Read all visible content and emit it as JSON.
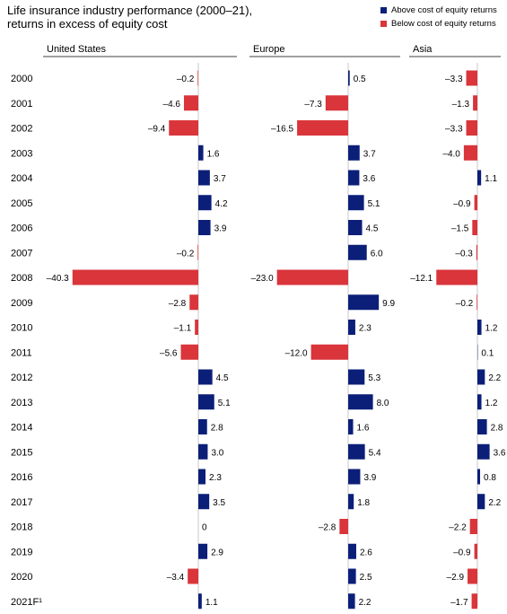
{
  "title_lines": [
    "Life insurance industry performance (2000–21),",
    "returns in excess of equity cost"
  ],
  "legend": [
    {
      "label": "Above cost of equity returns",
      "color": "#0b1f78"
    },
    {
      "label": "Below cost of equity returns",
      "color": "#d9353b"
    }
  ],
  "chart_data": {
    "type": "bar",
    "orientation": "horizontal",
    "categories": [
      "2000",
      "2001",
      "2002",
      "2003",
      "2004",
      "2005",
      "2006",
      "2007",
      "2008",
      "2009",
      "2010",
      "2011",
      "2012",
      "2013",
      "2014",
      "2015",
      "2016",
      "2017",
      "2018",
      "2019",
      "2020",
      "2021F¹"
    ],
    "colors": {
      "positive": "#0b1f78",
      "negative": "#d9353b"
    },
    "series": [
      {
        "name": "United States",
        "values": [
          -0.2,
          -4.6,
          -9.4,
          1.6,
          3.7,
          4.2,
          3.9,
          -0.2,
          -40.3,
          -2.8,
          -1.1,
          -5.6,
          4.5,
          5.1,
          2.8,
          3.0,
          2.3,
          3.5,
          0,
          2.9,
          -3.4,
          1.1
        ],
        "labels": [
          "–0.2",
          "–4.6",
          "–9.4",
          "1.6",
          "3.7",
          "4.2",
          "3.9",
          "–0.2",
          "–40.3",
          "–2.8",
          "–1.1",
          "–5.6",
          "4.5",
          "5.1",
          "2.8",
          "3.0",
          "2.3",
          "3.5",
          "0",
          "2.9",
          "–3.4",
          "1.1"
        ]
      },
      {
        "name": "Europe",
        "values": [
          0.5,
          -7.3,
          -16.5,
          3.7,
          3.6,
          5.1,
          4.5,
          6.0,
          -23.0,
          9.9,
          2.3,
          -12.0,
          5.3,
          8.0,
          1.6,
          5.4,
          3.9,
          1.8,
          -2.8,
          2.6,
          2.5,
          2.2
        ],
        "labels": [
          "0.5",
          "–7.3",
          "–16.5",
          "3.7",
          "3.6",
          "5.1",
          "4.5",
          "6.0",
          "–23.0",
          "9.9",
          "2.3",
          "–12.0",
          "5.3",
          "8.0",
          "1.6",
          "5.4",
          "3.9",
          "1.8",
          "–2.8",
          "2.6",
          "2.5",
          "2.2"
        ]
      },
      {
        "name": "Asia",
        "values": [
          -3.3,
          -1.3,
          -3.3,
          -4.0,
          1.1,
          -0.9,
          -1.5,
          -0.3,
          -12.1,
          -0.2,
          1.2,
          0.1,
          2.2,
          1.2,
          2.8,
          3.6,
          0.8,
          2.2,
          -2.2,
          -0.9,
          -2.9,
          -1.7
        ],
        "labels": [
          "–3.3",
          "–1.3",
          "–3.3",
          "–4.0",
          "1.1",
          "–0.9",
          "–1.5",
          "–0.3",
          "–12.1",
          "–0.2",
          "1.2",
          "0.1",
          "2.2",
          "1.2",
          "2.8",
          "3.6",
          "0.8",
          "2.2",
          "–2.2",
          "–0.9",
          "–2.9",
          "–1.7"
        ]
      }
    ]
  }
}
